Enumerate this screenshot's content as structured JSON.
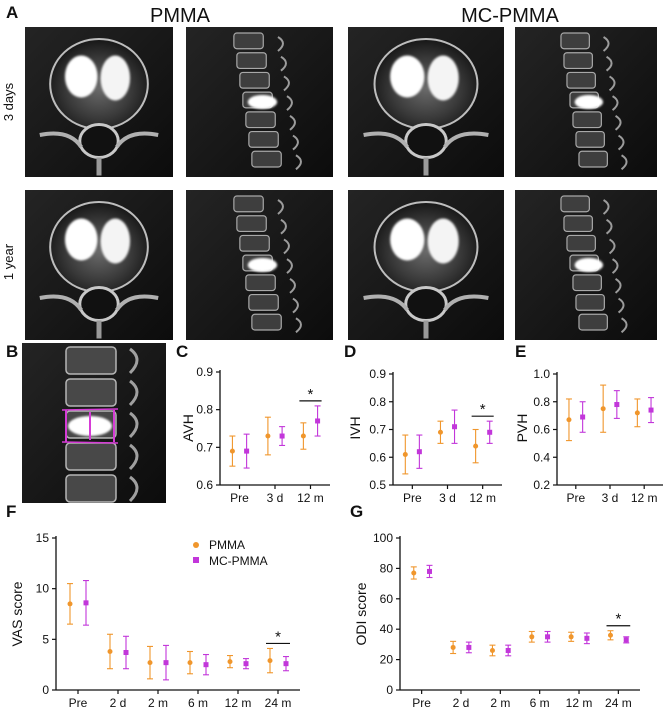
{
  "colors": {
    "pmma": "#F0962C",
    "mc_pmma": "#C236DA",
    "axis": "#111111"
  },
  "panel_a": {
    "letter": "A",
    "groups": [
      "PMMA",
      "MC-PMMA"
    ],
    "rows": [
      "3 days",
      "1 year"
    ]
  },
  "panel_b": {
    "letter": "B"
  },
  "chart_data": [
    {
      "panel": "C",
      "type": "scatter",
      "categories": [
        "Pre",
        "3 d",
        "12 m"
      ],
      "ylabel": "AVH",
      "ylim": [
        0.6,
        0.9
      ],
      "yticks": [
        "0.6",
        "0.7",
        "0.8",
        "0.9"
      ],
      "series": [
        {
          "name": "PMMA",
          "values": [
            0.69,
            0.73,
            0.73
          ],
          "err": [
            0.04,
            0.05,
            0.035
          ]
        },
        {
          "name": "MC-PMMA",
          "values": [
            0.69,
            0.73,
            0.77
          ],
          "err": [
            0.045,
            0.025,
            0.04
          ]
        }
      ],
      "significance": {
        "category": "12 m",
        "label": "*"
      }
    },
    {
      "panel": "D",
      "type": "scatter",
      "categories": [
        "Pre",
        "3 d",
        "12 m"
      ],
      "ylabel": "IVH",
      "ylim": [
        0.5,
        0.9
      ],
      "yticks": [
        "0.5",
        "0.6",
        "0.7",
        "0.8",
        "0.9"
      ],
      "series": [
        {
          "name": "PMMA",
          "values": [
            0.61,
            0.69,
            0.64
          ],
          "err": [
            0.07,
            0.04,
            0.06
          ]
        },
        {
          "name": "MC-PMMA",
          "values": [
            0.62,
            0.71,
            0.69
          ],
          "err": [
            0.06,
            0.06,
            0.04
          ]
        }
      ],
      "significance": {
        "category": "12 m",
        "label": "*"
      }
    },
    {
      "panel": "E",
      "type": "scatter",
      "categories": [
        "Pre",
        "3 d",
        "12 m"
      ],
      "ylabel": "PVH",
      "ylim": [
        0.2,
        1.0
      ],
      "yticks": [
        "0.2",
        "0.4",
        "0.6",
        "0.8",
        "1.0"
      ],
      "series": [
        {
          "name": "PMMA",
          "values": [
            0.67,
            0.75,
            0.72
          ],
          "err": [
            0.15,
            0.17,
            0.1
          ]
        },
        {
          "name": "MC-PMMA",
          "values": [
            0.69,
            0.78,
            0.74
          ],
          "err": [
            0.11,
            0.1,
            0.09
          ]
        }
      ]
    },
    {
      "panel": "F",
      "type": "scatter",
      "categories": [
        "Pre",
        "2 d",
        "2 m",
        "6 m",
        "12 m",
        "24 m"
      ],
      "ylabel": "VAS score",
      "ylim": [
        0,
        15
      ],
      "yticks": [
        "0",
        "5",
        "10",
        "15"
      ],
      "series": [
        {
          "name": "PMMA",
          "values": [
            8.5,
            3.8,
            2.7,
            2.7,
            2.8,
            2.9
          ],
          "err": [
            2.0,
            1.7,
            1.6,
            1.1,
            0.6,
            1.2
          ]
        },
        {
          "name": "MC-PMMA",
          "values": [
            8.6,
            3.7,
            2.7,
            2.5,
            2.6,
            2.6
          ],
          "err": [
            2.2,
            1.6,
            1.7,
            1.0,
            0.5,
            0.7
          ]
        }
      ],
      "significance": {
        "category": "24 m",
        "label": "*"
      }
    },
    {
      "panel": "G",
      "type": "scatter",
      "categories": [
        "Pre",
        "2 d",
        "2 m",
        "6 m",
        "12 m",
        "24 m"
      ],
      "ylabel": "ODI score",
      "ylim": [
        0,
        100
      ],
      "yticks": [
        "0",
        "20",
        "40",
        "60",
        "80",
        "100"
      ],
      "series": [
        {
          "name": "PMMA",
          "values": [
            77,
            28,
            26,
            35,
            35,
            36
          ],
          "err": [
            4,
            4,
            3.5,
            3.5,
            3,
            3
          ]
        },
        {
          "name": "MC-PMMA",
          "values": [
            78,
            28,
            26,
            35,
            34,
            33
          ],
          "err": [
            4,
            3.5,
            3.5,
            3.5,
            3.5,
            2
          ]
        }
      ],
      "significance": {
        "category": "24 m",
        "label": "*"
      }
    }
  ],
  "legend": {
    "items": [
      "PMMA",
      "MC-PMMA"
    ]
  }
}
